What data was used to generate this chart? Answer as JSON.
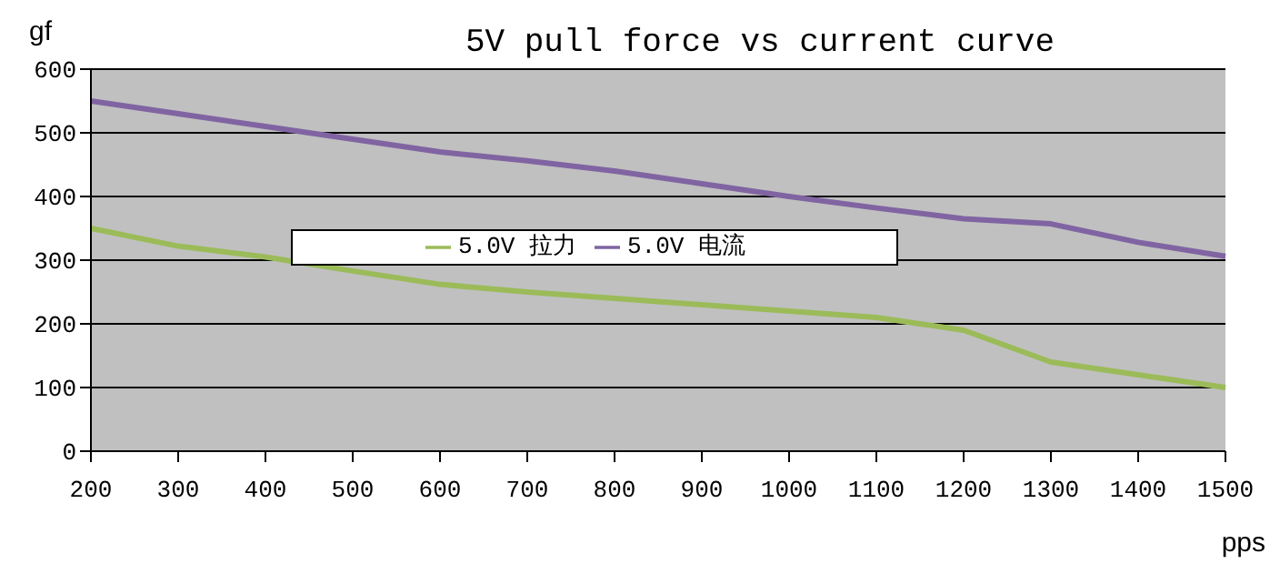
{
  "chart_data": {
    "type": "line",
    "title": "5V pull force vs current curve",
    "xlabel": "pps",
    "ylabel": "gf",
    "categories": [
      "200",
      "300",
      "400",
      "500",
      "600",
      "700",
      "800",
      "900",
      "1000",
      "1100",
      "1200",
      "1300",
      "1400",
      "1500"
    ],
    "series": [
      {
        "name": "5.0V 拉力",
        "color": "#9bbb59",
        "values": [
          350,
          322,
          305,
          283,
          262,
          250,
          240,
          230,
          220,
          210,
          190,
          140,
          120,
          100
        ]
      },
      {
        "name": "5.0V 电流",
        "color": "#8064a2",
        "values": [
          550,
          530,
          510,
          490,
          470,
          456,
          440,
          420,
          400,
          382,
          365,
          357,
          328,
          306
        ]
      }
    ],
    "ylim": [
      0,
      600
    ],
    "yticks": [
      0,
      100,
      200,
      300,
      400,
      500,
      600
    ],
    "grid": "y",
    "legend": "center",
    "marker": "none",
    "line_style": "solid"
  }
}
